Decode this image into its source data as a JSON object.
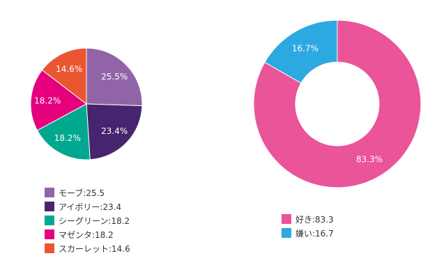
{
  "chart_data": [
    {
      "type": "pie",
      "title": "",
      "slices": [
        {
          "name": "モーブ",
          "value": 25.5,
          "label": "25.5%",
          "legend": "モーブ:25.5",
          "color": "#9164a8"
        },
        {
          "name": "アイボリー",
          "value": 23.4,
          "label": "23.4%",
          "legend": "アイボリー:23.4",
          "color": "#46246e"
        },
        {
          "name": "シーグリーン",
          "value": 18.2,
          "label": "18.2%",
          "legend": "シーグリーン:18.2",
          "color": "#00a88f"
        },
        {
          "name": "マゼンタ",
          "value": 18.2,
          "label": "18.2%",
          "legend": "マゼンタ:18.2",
          "color": "#e6007e"
        },
        {
          "name": "スカーレット",
          "value": 14.6,
          "label": "14.6%",
          "legend": "スカーレット:14.6",
          "color": "#ea5532"
        }
      ],
      "legend_position": "bottom-left"
    },
    {
      "type": "donut",
      "title": "",
      "slices": [
        {
          "name": "好き",
          "value": 83.3,
          "label": "83.3%",
          "legend": "好き:83.3",
          "color": "#ea5499"
        },
        {
          "name": "嫌い",
          "value": 16.7,
          "label": "16.7%",
          "legend": "嫌い:16.7",
          "color": "#2ca9e1"
        }
      ],
      "legend_position": "bottom-center"
    }
  ]
}
